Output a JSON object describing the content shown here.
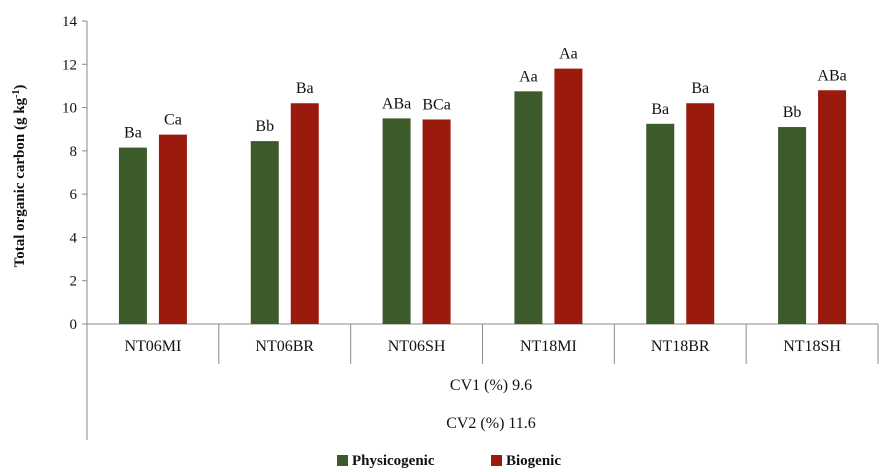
{
  "chart_data": {
    "type": "bar",
    "ylabel": "Total organic carbon (g kg",
    "ylabel_sup": "-1",
    "ylabel_end": ")",
    "ylim": [
      0,
      14
    ],
    "yticks": [
      "0",
      "2",
      "4",
      "6",
      "8",
      "10",
      "12",
      "14"
    ],
    "grid": false,
    "legend_position": "bottom",
    "categories": [
      "NT06MI",
      "NT06BR",
      "NT06SH",
      "NT18MI",
      "NT18BR",
      "NT18SH"
    ],
    "series": [
      {
        "name": "Physicogenic",
        "color": "#3c5a2a",
        "values": [
          8.15,
          8.45,
          9.5,
          10.75,
          9.25,
          9.1
        ],
        "labels": [
          "Ba",
          "Bb",
          "ABa",
          "Aa",
          "Ba",
          "Bb"
        ]
      },
      {
        "name": "Biogenic",
        "color": "#9a1a0e",
        "values": [
          8.75,
          10.2,
          9.45,
          11.8,
          10.2,
          10.8
        ],
        "labels": [
          "Ca",
          "Ba",
          "BCa",
          "Aa",
          "Ba",
          "ABa"
        ]
      }
    ],
    "annotations": [
      "CV1 (%) 9.6",
      "CV2 (%) 11.6"
    ]
  }
}
